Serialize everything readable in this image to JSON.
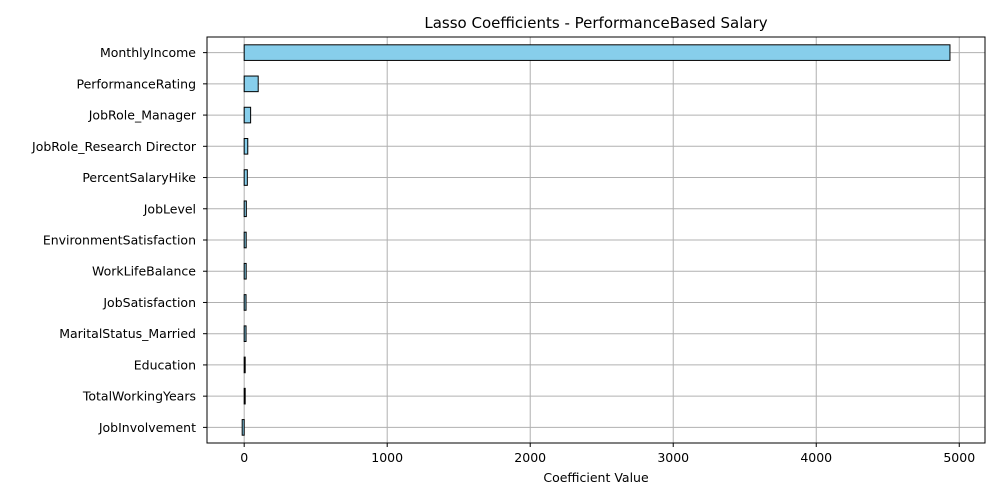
{
  "chart_data": {
    "type": "bar",
    "orientation": "horizontal",
    "title": "Lasso Coefficients - PerformanceBased Salary",
    "xlabel": "Coefficient Value",
    "ylabel": "",
    "categories": [
      "MonthlyIncome",
      "PerformanceRating",
      "JobRole_Manager",
      "JobRole_Research Director",
      "PercentSalaryHike",
      "JobLevel",
      "EnvironmentSatisfaction",
      "WorkLifeBalance",
      "JobSatisfaction",
      "MaritalStatus_Married",
      "Education",
      "TotalWorkingYears",
      "JobInvolvement"
    ],
    "values": [
      4935,
      98,
      45,
      25,
      22,
      15,
      14,
      14,
      13,
      13,
      7,
      6,
      -14
    ],
    "xlim": [
      -260,
      5180
    ],
    "xticks": [
      0,
      1000,
      2000,
      3000,
      4000,
      5000
    ],
    "xtick_labels": [
      "0",
      "1000",
      "2000",
      "3000",
      "4000",
      "5000"
    ],
    "grid": true,
    "bar_color": "#87CEEB",
    "edge_color": "#000000"
  }
}
